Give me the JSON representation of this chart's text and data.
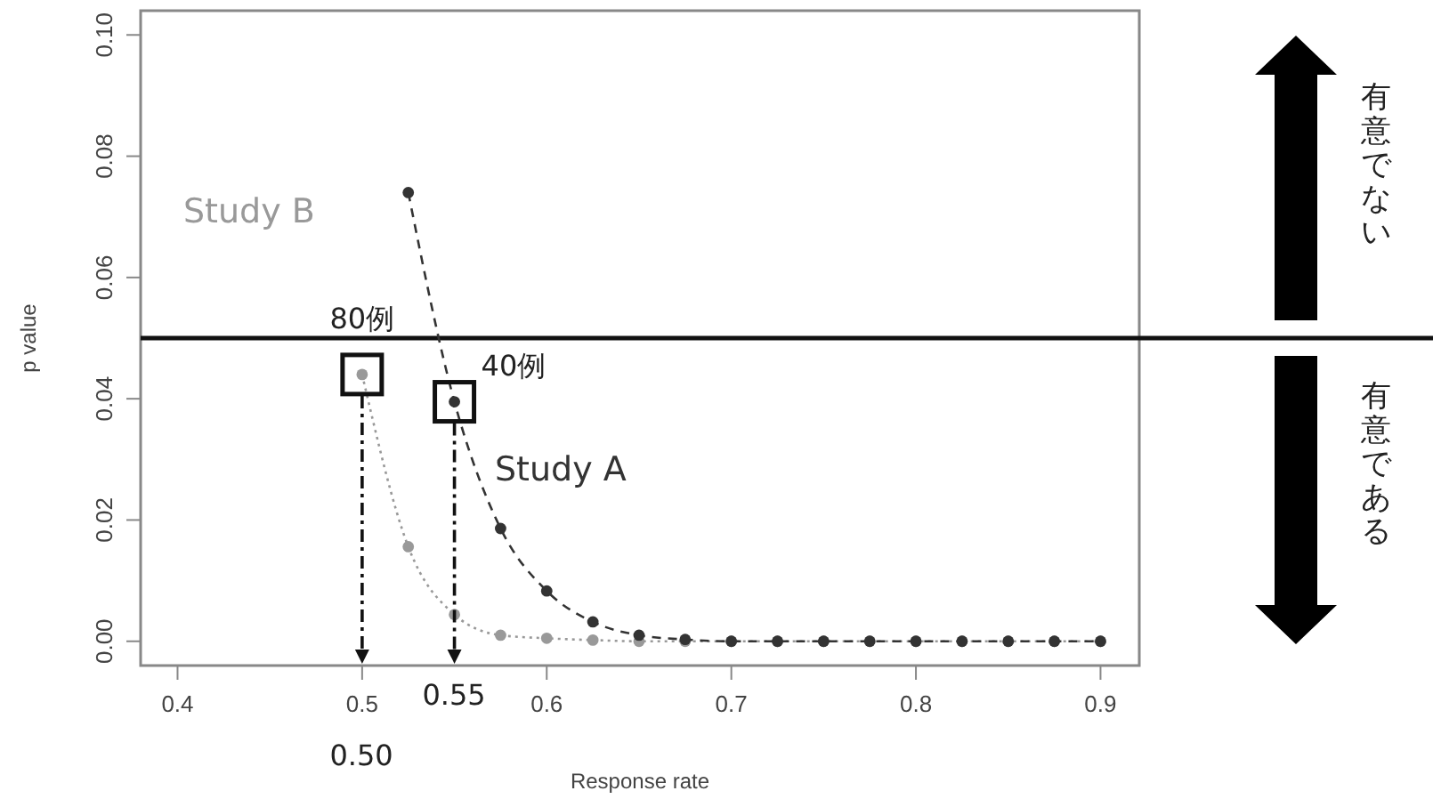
{
  "chart_data": {
    "type": "line",
    "xlabel": "Response rate",
    "ylabel": "p value",
    "x": [
      0.5,
      0.525,
      0.55,
      0.575,
      0.6,
      0.625,
      0.65,
      0.675,
      0.7,
      0.725,
      0.75,
      0.775,
      0.8,
      0.825,
      0.85,
      0.875,
      0.9
    ],
    "series": [
      {
        "name": "Study B",
        "color": "#999999",
        "line_style": "dotted",
        "values": [
          0.044,
          0.0156,
          0.0044,
          0.001,
          0.0005,
          0.0002,
          0,
          0,
          0,
          0,
          0,
          0,
          0,
          0,
          0,
          0,
          0
        ]
      },
      {
        "name": "Study A",
        "color": "#333333",
        "line_style": "dashed",
        "values": [
          null,
          0.074,
          0.0395,
          0.0186,
          0.0083,
          0.0032,
          0.001,
          0.0003,
          0,
          0,
          0,
          0,
          0,
          0,
          0,
          0,
          0
        ]
      }
    ],
    "xlim": [
      0.38,
      0.921
    ],
    "ylim": [
      -0.004,
      0.104
    ],
    "xticks": [
      {
        "value": 0.4,
        "label": "0.4"
      },
      {
        "value": 0.5,
        "label": "0.5"
      },
      {
        "value": 0.6,
        "label": "0.6"
      },
      {
        "value": 0.7,
        "label": "0.7"
      },
      {
        "value": 0.8,
        "label": "0.8"
      },
      {
        "value": 0.9,
        "label": "0.9"
      }
    ],
    "yticks": [
      {
        "value": 0,
        "label": "0.00"
      },
      {
        "value": 0.02,
        "label": "0.02"
      },
      {
        "value": 0.04,
        "label": "0.04"
      },
      {
        "value": 0.06,
        "label": "0.06"
      },
      {
        "value": 0.08,
        "label": "0.08"
      },
      {
        "value": 0.1,
        "label": "0.10"
      }
    ],
    "ref_lines": [
      {
        "axis": "y",
        "value": 0.05,
        "color": "#111111"
      }
    ],
    "annotations": [
      {
        "text": "80例",
        "x": 0.5,
        "y": 0.044
      },
      {
        "text": "40例",
        "x": 0.55,
        "y": 0.0395
      },
      "0.50",
      "0.55",
      "有意でない",
      "有意である"
    ],
    "marker": "circle",
    "grid": false,
    "legend": false
  }
}
